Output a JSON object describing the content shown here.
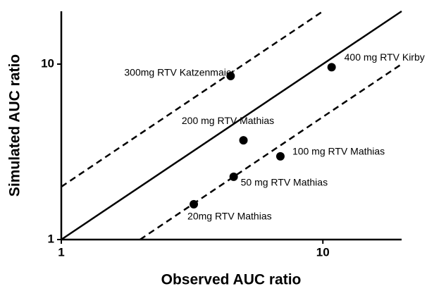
{
  "chart_data": {
    "type": "scatter",
    "x_label": "Observed AUC ratio",
    "y_label": "Simulated AUC ratio",
    "xscale": "log",
    "yscale": "log",
    "xlim": [
      1,
      20
    ],
    "ylim": [
      1,
      20
    ],
    "xticks": [
      1,
      10
    ],
    "yticks": [
      1,
      10
    ],
    "color": "#000000",
    "points": [
      {
        "label": "400 mg RTV Kirby",
        "x": 10.8,
        "y": 9.6
      },
      {
        "label": "300mg RTV Katzenmaier",
        "x": 4.44,
        "y": 8.55
      },
      {
        "label": "200 mg RTV Mathias",
        "x": 4.97,
        "y": 3.68
      },
      {
        "label": "100 mg RTV Mathias",
        "x": 6.88,
        "y": 2.98
      },
      {
        "label": "50 mg RTV Mathias",
        "x": 4.56,
        "y": 2.28
      },
      {
        "label": "20mg RTV Mathias",
        "x": 3.21,
        "y": 1.59
      }
    ],
    "reference_lines": [
      {
        "slope": 1,
        "style": "solid"
      },
      {
        "slope": 2,
        "style": "dashed"
      },
      {
        "slope": 0.5,
        "style": "dashed"
      }
    ]
  }
}
